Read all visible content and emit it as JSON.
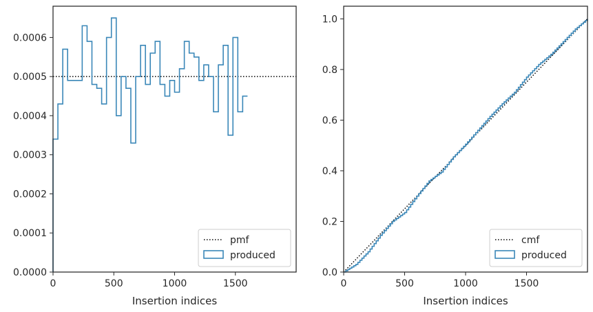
{
  "chart_data": [
    {
      "type": "histogram-step",
      "xlabel": "Insertion indices",
      "ylabel": "",
      "xlim": [
        0,
        2000
      ],
      "ylim": [
        0,
        0.00068
      ],
      "xticks": [
        0,
        500,
        1000,
        1500
      ],
      "xtick_labels": [
        "0",
        "500",
        "1000",
        "1500"
      ],
      "yticks": [
        0,
        0.0001,
        0.0002,
        0.0003,
        0.0004,
        0.0005,
        0.0006
      ],
      "ytick_labels": [
        "0.0000",
        "0.0001",
        "0.0002",
        "0.0003",
        "0.0004",
        "0.0005",
        "0.0006"
      ],
      "bin_width": 40,
      "bin_values": [
        0.00034,
        0.00043,
        0.00057,
        0.00049,
        0.00049,
        0.00049,
        0.00063,
        0.00059,
        0.00048,
        0.00047,
        0.00043,
        0.0006,
        0.00065,
        0.0004,
        0.0005,
        0.00047,
        0.00033,
        0.0005,
        0.00058,
        0.00048,
        0.00056,
        0.00059,
        0.00048,
        0.00045,
        0.00049,
        0.00046,
        0.00052,
        0.00059,
        0.00056,
        0.00055,
        0.00049,
        0.00053,
        0.0005,
        0.00041,
        0.00053,
        0.00058,
        0.00035,
        0.0006,
        0.00041,
        0.00045
      ],
      "reference_line": {
        "name": "pmf",
        "y": 0.0005
      },
      "series_names": [
        "pmf",
        "produced"
      ],
      "legend": {
        "placement": "lower-right",
        "entries": [
          "pmf",
          "produced"
        ]
      },
      "colors": {
        "produced": "#3a87b8",
        "reference": "#000000"
      }
    },
    {
      "type": "cumulative-step",
      "xlabel": "Insertion indices",
      "ylabel": "",
      "xlim": [
        0,
        2000
      ],
      "ylim": [
        0,
        1.05
      ],
      "xticks": [
        0,
        500,
        1000,
        1500
      ],
      "xtick_labels": [
        "0",
        "500",
        "1000",
        "1500"
      ],
      "yticks": [
        0.0,
        0.2,
        0.4,
        0.6,
        0.8,
        1.0
      ],
      "ytick_labels": [
        "0.0",
        "0.2",
        "0.4",
        "0.6",
        "0.8",
        "1.0"
      ],
      "reference_line": {
        "name": "cmf",
        "from": [
          0,
          0
        ],
        "to": [
          2000,
          1.0
        ]
      },
      "produced_points": [
        [
          0,
          0
        ],
        [
          100,
          0.03
        ],
        [
          200,
          0.08
        ],
        [
          300,
          0.145
        ],
        [
          400,
          0.2
        ],
        [
          500,
          0.235
        ],
        [
          600,
          0.3
        ],
        [
          700,
          0.36
        ],
        [
          800,
          0.395
        ],
        [
          900,
          0.455
        ],
        [
          1000,
          0.505
        ],
        [
          1100,
          0.56
        ],
        [
          1200,
          0.615
        ],
        [
          1300,
          0.665
        ],
        [
          1400,
          0.71
        ],
        [
          1500,
          0.77
        ],
        [
          1600,
          0.82
        ],
        [
          1700,
          0.86
        ],
        [
          1800,
          0.91
        ],
        [
          1900,
          0.96
        ],
        [
          2000,
          1.0
        ]
      ],
      "series_names": [
        "cmf",
        "produced"
      ],
      "legend": {
        "placement": "lower-right",
        "entries": [
          "cmf",
          "produced"
        ]
      },
      "colors": {
        "produced": "#3a87b8",
        "reference": "#000000"
      }
    }
  ]
}
